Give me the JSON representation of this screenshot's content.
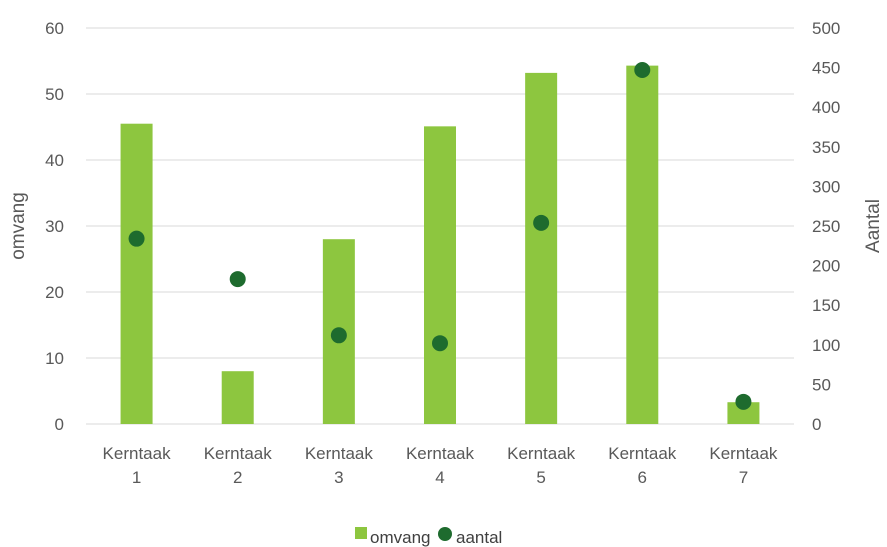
{
  "chart_data": {
    "type": "bar",
    "categories": [
      [
        "Kerntaak",
        "1"
      ],
      [
        "Kerntaak",
        "2"
      ],
      [
        "Kerntaak",
        "3"
      ],
      [
        "Kerntaak",
        "4"
      ],
      [
        "Kerntaak",
        "5"
      ],
      [
        "Kerntaak",
        "6"
      ],
      [
        "Kerntaak",
        "7"
      ]
    ],
    "series": [
      {
        "name": "omvang",
        "kind": "bar",
        "axis": "left",
        "color": "#8DC63F",
        "values": [
          45.5,
          8,
          28,
          45.1,
          53.2,
          54.3,
          3.3
        ]
      },
      {
        "name": "aantal",
        "kind": "scatter",
        "axis": "right",
        "color": "#1E6B2E",
        "values": [
          234,
          183,
          112,
          102,
          254,
          447,
          28
        ]
      }
    ],
    "ylabel": "omvang",
    "y2label": "Aantal",
    "ylim": [
      0,
      60
    ],
    "yticks": [
      0,
      10,
      20,
      30,
      40,
      50,
      60
    ],
    "y2lim": [
      0,
      500
    ],
    "y2ticks": [
      0,
      50,
      100,
      150,
      200,
      250,
      300,
      350,
      400,
      450,
      500
    ],
    "grid": true,
    "legend": "bottom"
  }
}
